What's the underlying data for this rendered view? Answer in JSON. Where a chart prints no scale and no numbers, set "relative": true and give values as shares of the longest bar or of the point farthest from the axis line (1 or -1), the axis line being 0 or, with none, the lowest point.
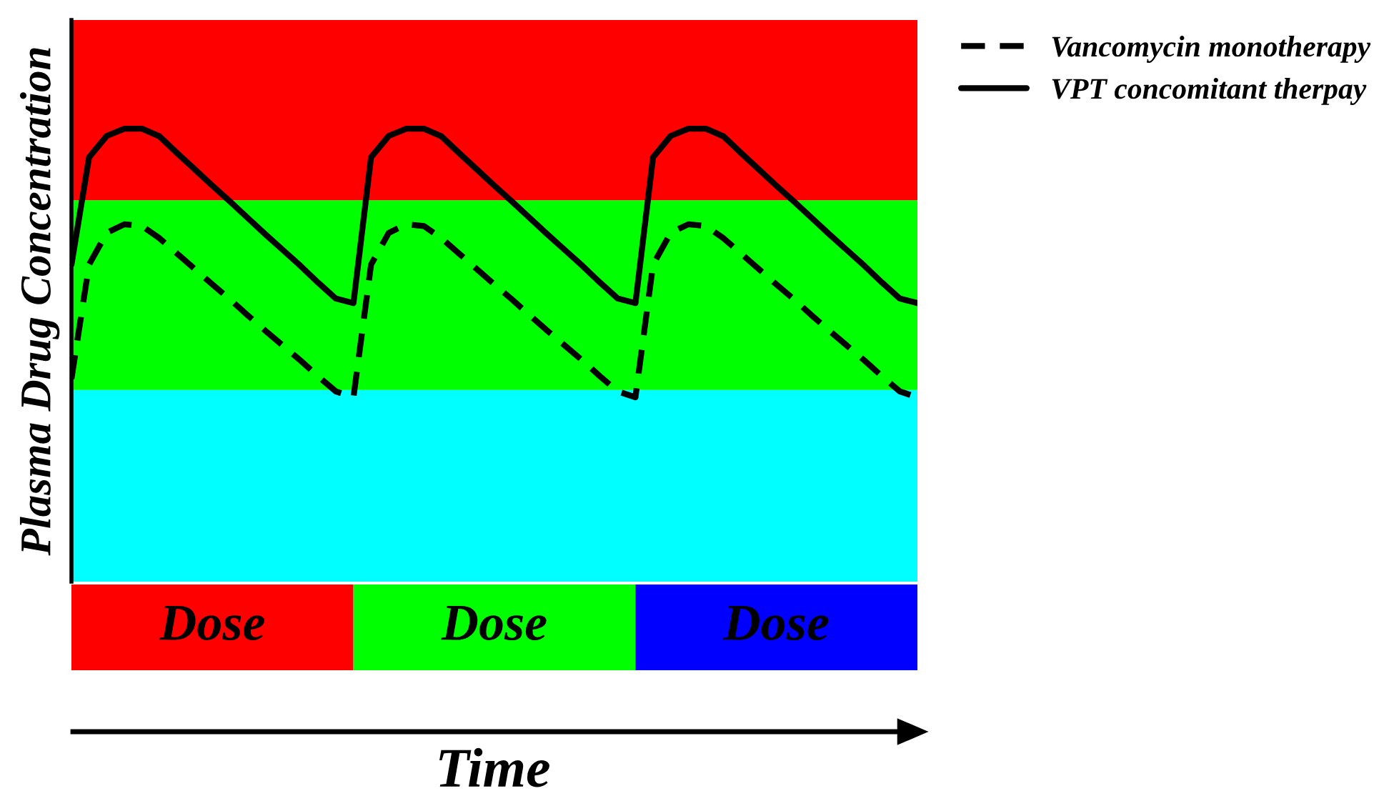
{
  "chart_data": {
    "type": "line",
    "relative": true,
    "ylabel": "Plasma Drug Concentration",
    "xlabel": "Time",
    "categories": [
      null,
      null,
      null,
      null,
      null,
      null,
      null,
      null,
      null,
      null,
      null,
      null,
      null,
      null,
      null,
      null,
      null,
      null,
      null,
      null,
      null,
      null,
      null,
      null,
      null,
      null,
      null,
      null,
      null,
      null,
      null,
      null,
      null,
      null,
      null,
      null,
      null,
      null,
      null,
      null,
      null,
      null,
      null,
      null,
      null,
      null,
      null,
      null,
      null
    ],
    "series": [
      {
        "name": "Vancomycin monotherapy",
        "color": "#000000",
        "line_style": "dashed",
        "values": [
          0.448,
          0.7,
          0.77,
          0.789,
          0.785,
          0.758,
          0.724,
          0.69,
          0.656,
          0.623,
          0.588,
          0.554,
          0.521,
          0.488,
          0.453,
          0.42,
          0.407,
          0.7,
          0.77,
          0.789,
          0.785,
          0.758,
          0.724,
          0.69,
          0.656,
          0.623,
          0.588,
          0.554,
          0.521,
          0.488,
          0.453,
          0.42,
          0.407,
          0.7,
          0.77,
          0.789,
          0.785,
          0.758,
          0.724,
          0.69,
          0.656,
          0.623,
          0.588,
          0.554,
          0.521,
          0.488,
          0.453,
          0.42,
          0.407
        ]
      },
      {
        "name": "VPT concomitant therpay",
        "color": "#000000",
        "line_style": "solid",
        "values": [
          0.7,
          0.937,
          0.984,
          1,
          1,
          0.983,
          0.946,
          0.91,
          0.874,
          0.839,
          0.803,
          0.767,
          0.732,
          0.697,
          0.66,
          0.625,
          0.615,
          0.937,
          0.984,
          1,
          1,
          0.983,
          0.946,
          0.91,
          0.874,
          0.839,
          0.803,
          0.767,
          0.732,
          0.697,
          0.66,
          0.625,
          0.615,
          0.937,
          0.984,
          1,
          1,
          0.983,
          0.946,
          0.91,
          0.874,
          0.839,
          0.803,
          0.767,
          0.732,
          0.697,
          0.66,
          0.625,
          0.615
        ]
      }
    ],
    "bands": [
      {
        "axis": "y",
        "from": 0,
        "to": 0.423,
        "color": "#00ffff"
      },
      {
        "axis": "y",
        "from": 0.423,
        "to": 0.842,
        "color": "#00ff00"
      },
      {
        "axis": "y",
        "from": 0.842,
        "to": 1.24,
        "color": "#ff0000"
      }
    ],
    "annotations": [
      "Dose",
      "Dose",
      "Dose"
    ],
    "legend": "right"
  }
}
